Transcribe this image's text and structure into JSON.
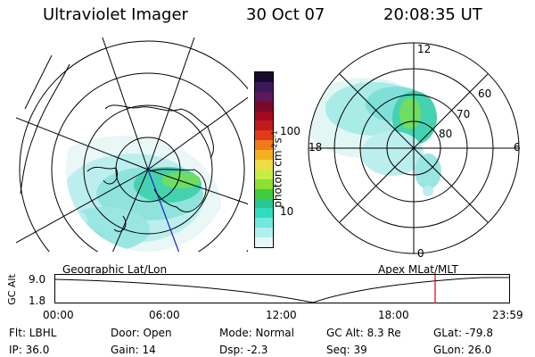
{
  "header": {
    "title": "Ultraviolet Imager",
    "date": "30 Oct 07",
    "time": "20:08:35 UT"
  },
  "colorbar": {
    "unit_label": "photon cm-2s-1",
    "tick_labels": [
      "100",
      "10"
    ],
    "colors": [
      "#1a0a2e",
      "#3a1a5a",
      "#5a1a5a",
      "#7a0a2a",
      "#a00a20",
      "#c01a1a",
      "#e03a1a",
      "#f07a1a",
      "#f5b020",
      "#eedd44",
      "#c8ec44",
      "#8ce030",
      "#40cc40",
      "#28c890",
      "#30dcc0",
      "#70e8e0",
      "#b0f0ee",
      "#e6f8f6"
    ]
  },
  "left_panel": {
    "caption": "Geographic Lat/Lon"
  },
  "right_panel": {
    "caption": "Apex MLat/MLT",
    "lat_labels": [
      "60",
      "70",
      "80"
    ],
    "mlt_labels": {
      "top": "12",
      "left": "18",
      "right": "6",
      "bottom": "0"
    }
  },
  "altitude_plot": {
    "axis_label": "GC Alt",
    "y_ticks": [
      "9.0",
      "1.8"
    ],
    "x_ticks": [
      "00:00",
      "06:00",
      "12:00",
      "18:00",
      "23:59"
    ],
    "marker_color": "#dd0000"
  },
  "info": {
    "flt": "Flt: LBHL",
    "door": "Door: Open",
    "mode": "Mode: Normal",
    "gc_alt": "GC Alt: 8.3 Re",
    "glat": "GLat: -79.8",
    "ip": "IP: 36.0",
    "gain": "Gain: 14",
    "dsp": "Dsp:    -2.3",
    "seq": "Seq: 39",
    "glon": "GLon:  26.0"
  }
}
